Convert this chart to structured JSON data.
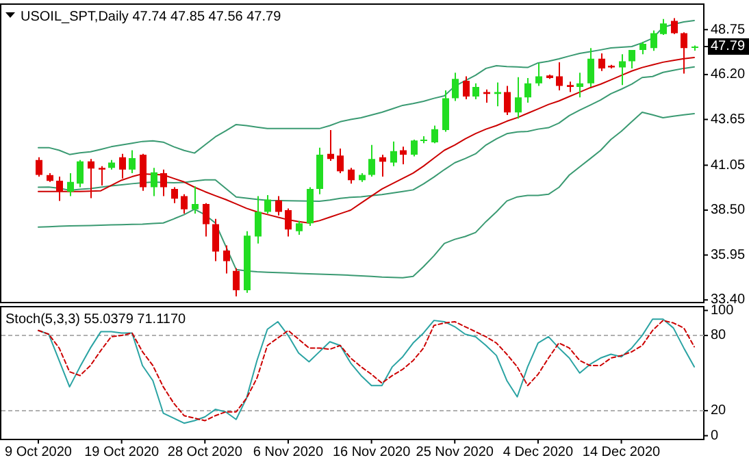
{
  "chart_data": [
    {
      "type": "candlestick",
      "title": "USOIL_SPT,Daily 47.74 47.85 47.56 47.79",
      "categories": [
        null,
        null,
        null,
        null,
        null,
        null,
        null,
        null,
        null,
        null,
        null,
        null,
        null,
        null,
        null,
        null,
        null,
        null,
        null,
        null,
        null,
        null,
        null,
        null,
        null,
        null,
        null,
        null,
        null,
        null,
        null,
        null,
        null,
        null,
        null,
        null,
        null,
        null,
        null,
        null,
        null,
        null,
        null,
        null,
        null,
        null,
        null,
        null,
        null,
        null,
        null,
        null,
        null,
        null,
        null,
        null,
        null,
        null,
        null,
        null,
        null,
        null,
        null,
        null
      ],
      "ohlc": [
        [
          41.35,
          41.5,
          40.4,
          40.5
        ],
        [
          40.49,
          40.6,
          40.1,
          40.16
        ],
        [
          40.17,
          40.4,
          39.02,
          39.55
        ],
        [
          39.55,
          40.6,
          39.3,
          40.1
        ],
        [
          40.0,
          41.35,
          39.8,
          41.27
        ],
        [
          41.27,
          41.4,
          39.18,
          40.86
        ],
        [
          40.9,
          41.0,
          39.9,
          40.8
        ],
        [
          40.9,
          41.35,
          40.8,
          41.2
        ],
        [
          41.5,
          41.7,
          40.3,
          40.8
        ],
        [
          40.8,
          41.9,
          40.6,
          41.45
        ],
        [
          41.65,
          41.7,
          39.6,
          39.8
        ],
        [
          39.8,
          40.9,
          39.3,
          40.65
        ],
        [
          40.6,
          40.8,
          39.3,
          39.8
        ],
        [
          39.7,
          39.8,
          38.9,
          39.15
        ],
        [
          39.3,
          39.4,
          38.3,
          38.55
        ],
        [
          38.55,
          39.85,
          38.3,
          38.85
        ],
        [
          38.85,
          38.9,
          37.0,
          37.7
        ],
        [
          37.7,
          38.0,
          35.6,
          36.15
        ],
        [
          36.2,
          36.5,
          34.9,
          35.6
        ],
        [
          35.05,
          35.2,
          33.6,
          33.95
        ],
        [
          33.95,
          37.3,
          33.8,
          37.05
        ],
        [
          37.0,
          39.3,
          36.6,
          38.4
        ],
        [
          38.4,
          39.35,
          38.3,
          39.1
        ],
        [
          39.05,
          39.3,
          38.2,
          38.4
        ],
        [
          38.5,
          38.6,
          37.0,
          37.4
        ],
        [
          37.3,
          37.9,
          37.1,
          37.75
        ],
        [
          37.75,
          39.8,
          37.6,
          39.7
        ],
        [
          39.7,
          42.05,
          39.4,
          41.65
        ],
        [
          41.7,
          43.05,
          41.3,
          41.4
        ],
        [
          41.6,
          42.0,
          40.6,
          40.7
        ],
        [
          40.8,
          40.9,
          40.0,
          40.2
        ],
        [
          40.2,
          40.6,
          40.1,
          40.5
        ],
        [
          40.5,
          42.2,
          40.4,
          41.4
        ],
        [
          41.5,
          41.65,
          40.4,
          41.25
        ],
        [
          41.2,
          42.4,
          41.0,
          41.85
        ],
        [
          41.9,
          42.1,
          41.1,
          41.65
        ],
        [
          41.65,
          42.5,
          41.55,
          42.45
        ],
        [
          42.45,
          42.7,
          42.3,
          42.5
        ],
        [
          42.35,
          43.3,
          42.3,
          43.1
        ],
        [
          43.05,
          45.3,
          42.95,
          44.85
        ],
        [
          44.85,
          46.3,
          44.7,
          45.95
        ],
        [
          45.85,
          46.1,
          44.8,
          44.95
        ],
        [
          44.95,
          45.7,
          44.8,
          45.5
        ],
        [
          45.2,
          45.35,
          44.6,
          45.1
        ],
        [
          45.1,
          45.75,
          44.4,
          45.2
        ],
        [
          45.2,
          45.55,
          43.9,
          44.05
        ],
        [
          44.05,
          46.05,
          43.7,
          44.9
        ],
        [
          44.9,
          46.0,
          44.6,
          45.7
        ],
        [
          45.7,
          46.85,
          45.55,
          46.1
        ],
        [
          46.15,
          46.2,
          45.95,
          46.0
        ],
        [
          46.1,
          46.9,
          45.3,
          45.55
        ],
        [
          45.6,
          45.8,
          45.2,
          45.5
        ],
        [
          45.5,
          46.3,
          44.9,
          45.7
        ],
        [
          45.7,
          47.7,
          45.5,
          47.1
        ],
        [
          47.1,
          47.4,
          46.4,
          46.55
        ],
        [
          46.7,
          46.75,
          46.55,
          46.6
        ],
        [
          46.6,
          47.35,
          45.6,
          46.95
        ],
        [
          46.95,
          47.6,
          46.55,
          47.6
        ],
        [
          47.6,
          48.05,
          47.35,
          47.95
        ],
        [
          47.7,
          48.7,
          47.55,
          48.55
        ],
        [
          48.5,
          49.35,
          48.45,
          49.1
        ],
        [
          49.25,
          49.4,
          48.5,
          48.55
        ],
        [
          48.55,
          48.6,
          46.25,
          47.7
        ],
        [
          47.74,
          47.85,
          47.56,
          47.79
        ]
      ],
      "colors": [
        "#e00000",
        "#e00000",
        "#e00000",
        "#22dd22",
        "#22dd22",
        "#e00000",
        "#e00000",
        "#22dd22",
        "#e00000",
        "#22dd22",
        "#e00000",
        "#22dd22",
        "#e00000",
        "#e00000",
        "#e00000",
        "#22dd22",
        "#e00000",
        "#e00000",
        "#e00000",
        "#e00000",
        "#22dd22",
        "#22dd22",
        "#22dd22",
        "#e00000",
        "#e00000",
        "#22dd22",
        "#22dd22",
        "#22dd22",
        "#e00000",
        "#e00000",
        "#e00000",
        "#22dd22",
        "#22dd22",
        "#e00000",
        "#22dd22",
        "#e00000",
        "#22dd22",
        "#22dd22",
        "#22dd22",
        "#22dd22",
        "#22dd22",
        "#e00000",
        "#22dd22",
        "#e00000",
        "#22dd22",
        "#e00000",
        "#22dd22",
        "#22dd22",
        "#22dd22",
        "#e00000",
        "#e00000",
        "#e00000",
        "#22dd22",
        "#22dd22",
        "#e00000",
        "#e00000",
        "#22dd22",
        "#22dd22",
        "#22dd22",
        "#22dd22",
        "#22dd22",
        "#e00000",
        "#e00000",
        "#22dd22"
      ],
      "series": [
        {
          "type": "line",
          "color": "#3a9a72",
          "values": [
            42.05,
            42.05,
            41.9,
            41.66,
            41.75,
            41.81,
            41.95,
            42.1,
            42.2,
            42.3,
            42.4,
            42.43,
            42.36,
            42.1,
            41.89,
            41.74,
            42.2,
            42.66,
            43.0,
            43.36,
            43.3,
            43.21,
            43.13,
            43.13,
            43.13,
            43.13,
            43.13,
            43.13,
            43.3,
            43.52,
            43.65,
            43.75,
            43.9,
            44.06,
            44.25,
            44.45,
            44.55,
            44.68,
            44.85,
            44.99,
            45.54,
            45.85,
            46.16,
            46.55,
            46.7,
            46.65,
            46.63,
            46.6,
            46.86,
            46.95,
            47.09,
            47.25,
            47.4,
            47.5,
            47.6,
            47.71,
            47.75,
            47.79,
            48.0,
            48.26,
            48.88,
            49.05,
            49.19,
            49.27
          ]
        },
        {
          "type": "line",
          "color": "#3a9a72",
          "values": [
            39.8,
            39.81,
            39.74,
            39.63,
            39.68,
            39.72,
            39.8,
            39.88,
            39.94,
            40.0,
            40.05,
            40.09,
            40.07,
            40.05,
            40.07,
            40.15,
            40.22,
            40.22,
            39.73,
            39.25,
            39.18,
            39.11,
            39.05,
            39.04,
            39.03,
            39.02,
            39.01,
            39.0,
            39.07,
            39.17,
            39.23,
            39.26,
            39.32,
            39.38,
            39.47,
            39.56,
            39.65,
            39.99,
            40.38,
            40.8,
            41.19,
            41.43,
            41.7,
            42.2,
            42.55,
            42.84,
            42.94,
            42.97,
            43.1,
            43.18,
            43.44,
            43.87,
            44.18,
            44.46,
            44.75,
            45.11,
            45.37,
            45.66,
            46.03,
            46.09,
            46.32,
            46.44,
            46.55,
            46.63
          ]
        },
        {
          "type": "line",
          "color": "#3a9a72",
          "values": [
            37.54,
            37.56,
            37.58,
            37.6,
            37.61,
            37.62,
            37.64,
            37.66,
            37.67,
            37.69,
            37.7,
            37.74,
            37.77,
            38.0,
            38.24,
            38.55,
            38.24,
            37.77,
            36.45,
            35.13,
            35.05,
            35.0,
            34.97,
            34.95,
            34.93,
            34.9,
            34.88,
            34.86,
            34.84,
            34.82,
            34.8,
            34.77,
            34.74,
            34.7,
            34.68,
            34.66,
            34.74,
            35.29,
            35.91,
            36.61,
            36.84,
            37.0,
            37.23,
            37.85,
            38.4,
            39.02,
            39.25,
            39.33,
            39.33,
            39.4,
            39.79,
            40.49,
            40.96,
            41.42,
            41.89,
            42.51,
            42.98,
            43.52,
            44.06,
            43.91,
            43.75,
            43.83,
            43.91,
            43.98
          ]
        },
        {
          "type": "line",
          "color": "#cc0000",
          "values": [
            39.56,
            39.56,
            39.56,
            39.56,
            39.56,
            39.58,
            39.6,
            39.9,
            40.2,
            40.4,
            40.56,
            40.53,
            40.5,
            40.3,
            40.1,
            39.8,
            39.55,
            39.32,
            39.1,
            38.85,
            38.6,
            38.4,
            38.25,
            38.1,
            37.95,
            37.85,
            37.77,
            37.9,
            38.1,
            38.3,
            38.5,
            38.9,
            39.3,
            39.7,
            40.0,
            40.3,
            40.6,
            41.0,
            41.45,
            41.9,
            42.2,
            42.55,
            42.85,
            43.1,
            43.3,
            43.55,
            43.75,
            44.0,
            44.25,
            44.5,
            44.7,
            44.95,
            45.2,
            45.45,
            45.65,
            45.9,
            46.15,
            46.4,
            46.6,
            46.75,
            46.9,
            47.0,
            47.1,
            47.17
          ]
        }
      ],
      "ylim": [
        33.25,
        50.2
      ],
      "yticks": [
        48.75,
        47.79,
        {
          "value": 46.2,
          "label": "46.20"
        },
        43.65,
        41.05,
        {
          "value": 38.5,
          "label": "38.50"
        },
        35.95,
        {
          "value": 33.4,
          "label": "33.40"
        }
      ]
    },
    {
      "type": "line",
      "title": "Stoch(5,3,3) 55.0379 71.1170",
      "categories": [
        "9 Oct 2020",
        null,
        null,
        null,
        null,
        null,
        null,
        null,
        "19 Oct 2020",
        null,
        null,
        null,
        null,
        null,
        null,
        null,
        "28 Oct 2020",
        null,
        null,
        null,
        null,
        null,
        null,
        null,
        "6 Nov 2020",
        null,
        null,
        null,
        null,
        null,
        null,
        null,
        "16 Nov 2020",
        null,
        null,
        null,
        null,
        null,
        null,
        null,
        "25 Nov 2020",
        null,
        null,
        null,
        null,
        null,
        null,
        null,
        "4 Dec 2020",
        null,
        null,
        null,
        null,
        null,
        null,
        null,
        "14 Dec 2020",
        null,
        null,
        null,
        null,
        null,
        null,
        null
      ],
      "series": [
        {
          "color": "#2aa3a3",
          "line_style": "solid",
          "values": [
            84,
            81,
            60,
            39,
            55,
            70,
            83,
            83,
            82,
            82,
            56,
            44,
            18,
            14,
            10,
            12,
            15,
            21,
            19,
            13,
            30,
            60,
            85,
            91,
            80,
            66,
            59,
            67,
            75,
            72,
            58,
            48,
            40,
            40,
            55,
            63,
            74,
            82,
            92,
            91,
            87,
            81,
            79,
            72,
            64,
            44,
            31,
            55,
            74,
            79,
            70,
            62,
            50,
            57,
            62,
            65,
            63,
            70,
            80,
            93,
            93,
            86,
            70,
            55
          ]
        },
        {
          "color": "#cc0000",
          "line_style": "dashed",
          "values": [
            84,
            81,
            70,
            51,
            48,
            56,
            68,
            79,
            80,
            82,
            67,
            56,
            39,
            26,
            16,
            14,
            12,
            16,
            19,
            19,
            30,
            46,
            72,
            78,
            84,
            77,
            70,
            70,
            69,
            72,
            62,
            55,
            49,
            42,
            48,
            53,
            60,
            70,
            88,
            90,
            91,
            87,
            83,
            79,
            74,
            65,
            55,
            40,
            49,
            62,
            74,
            70,
            60,
            56,
            56,
            62,
            64,
            67,
            72,
            84,
            92,
            90,
            86,
            71
          ]
        }
      ],
      "ylim": [
        -3,
        103
      ],
      "yticks": [
        0,
        20,
        80,
        100
      ],
      "ref_lines": [
        {
          "axis": "y",
          "value": 20,
          "color": "#b0b0b0",
          "line_style": "dashed"
        },
        {
          "axis": "y",
          "value": 80,
          "color": "#b0b0b0",
          "line_style": "dashed"
        }
      ]
    }
  ]
}
